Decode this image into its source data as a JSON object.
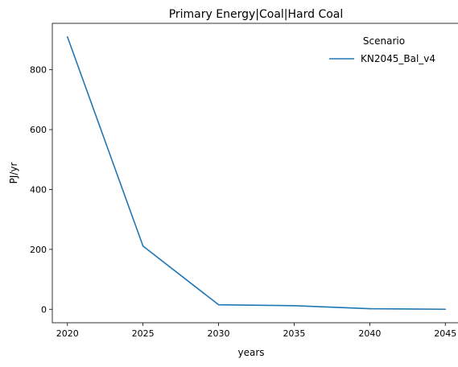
{
  "chart_data": {
    "type": "line",
    "title": "Primary Energy|Coal|Hard Coal",
    "xlabel": "years",
    "ylabel": "PJ/yr",
    "x": [
      2020,
      2025,
      2030,
      2035,
      2040,
      2045
    ],
    "xticks": [
      2020,
      2025,
      2030,
      2035,
      2040,
      2045
    ],
    "yticks": [
      0,
      200,
      400,
      600,
      800
    ],
    "xlim": [
      2019,
      2046
    ],
    "ylim": [
      -45,
      955
    ],
    "grid": false,
    "legend": {
      "title": "Scenario",
      "placement": "top-right"
    },
    "series": [
      {
        "name": "KN2045_Bal_v4",
        "color": "#1f77b4",
        "values": [
          910,
          211,
          15,
          12,
          2,
          0
        ]
      }
    ]
  }
}
